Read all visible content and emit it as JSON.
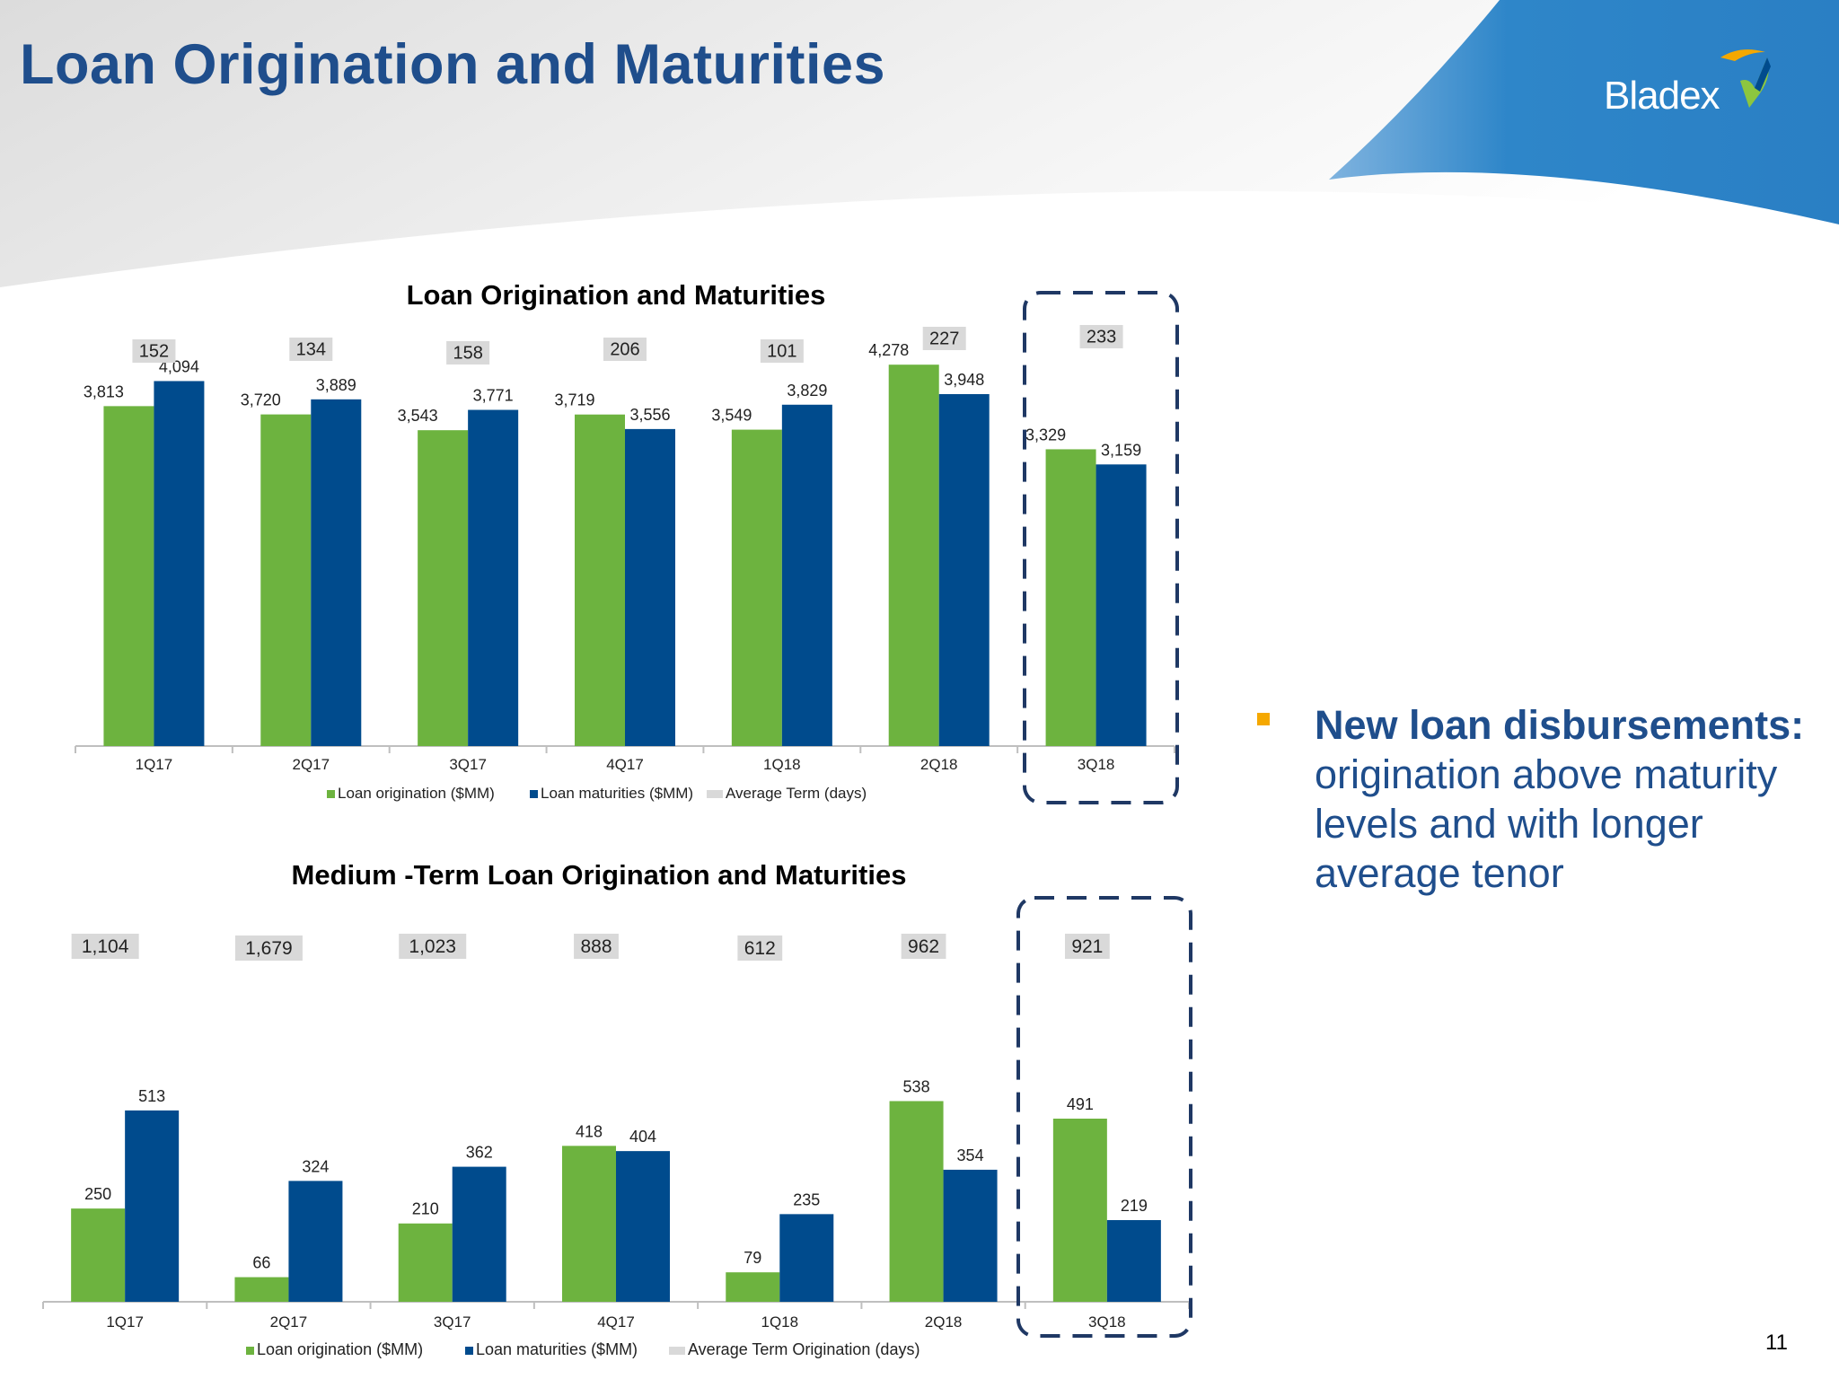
{
  "slide": {
    "title": "Loan Origination and Maturities",
    "logo_text": "Bladex",
    "page_number": "11"
  },
  "colors": {
    "title": "#1f4e8c",
    "origination": "#6db33f",
    "maturities": "#004b8d",
    "term_box": "#d9d9d9",
    "highlight_dash": "#1f3864",
    "banner_blue": "#2e86c9",
    "bullet_marker": "#f5a800"
  },
  "bullet": {
    "head": "New loan disbursements:",
    "body": " origination above maturity levels and with longer average tenor"
  },
  "chart_data": [
    {
      "type": "bar",
      "title": "Loan Origination and Maturities",
      "categories": [
        "1Q17",
        "2Q17",
        "3Q17",
        "4Q17",
        "1Q18",
        "2Q18",
        "3Q18"
      ],
      "series": [
        {
          "name": "Loan origination ($MM)",
          "color": "#6db33f",
          "values": [
            3813,
            3720,
            3543,
            3719,
            3549,
            4278,
            3329
          ]
        },
        {
          "name": "Loan maturities ($MM)",
          "color": "#004b8d",
          "values": [
            4094,
            3889,
            3771,
            3556,
            3829,
            3948,
            3159
          ]
        }
      ],
      "term_series": {
        "name": "Average Term (days)",
        "values": [
          152,
          134,
          158,
          206,
          101,
          227,
          233
        ]
      },
      "highlight_category": "3Q18",
      "legend": "bottom"
    },
    {
      "type": "bar",
      "title": "Medium -Term Loan Origination and Maturities",
      "categories": [
        "1Q17",
        "2Q17",
        "3Q17",
        "4Q17",
        "1Q18",
        "2Q18",
        "3Q18"
      ],
      "series": [
        {
          "name": "Loan origination ($MM)",
          "color": "#6db33f",
          "values": [
            250,
            66,
            210,
            418,
            79,
            538,
            491
          ]
        },
        {
          "name": "Loan maturities ($MM)",
          "color": "#004b8d",
          "values": [
            513,
            324,
            362,
            404,
            235,
            354,
            219
          ]
        }
      ],
      "term_series": {
        "name": "Average Term Origination (days)",
        "values": [
          1104,
          1679,
          1023,
          888,
          612,
          962,
          921
        ]
      },
      "highlight_category": "3Q18",
      "legend": "bottom"
    }
  ]
}
